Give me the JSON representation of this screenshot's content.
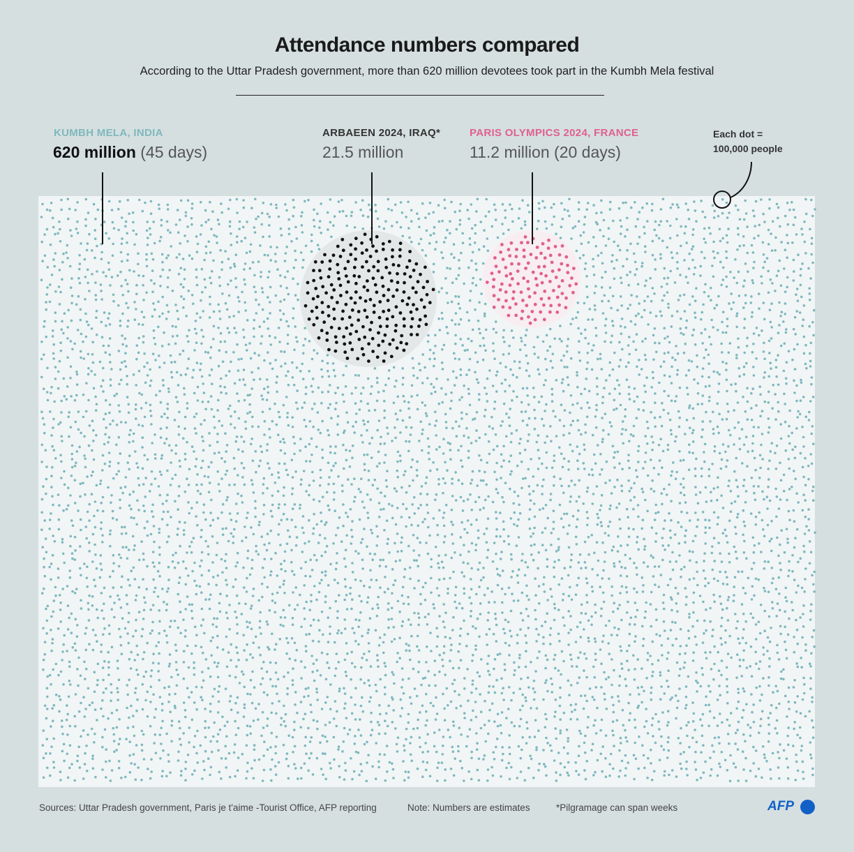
{
  "title": "Attendance numbers compared",
  "subtitle": "According to the Uttar Pradesh government, more than 620 million devotees took part in the Kumbh Mela festival",
  "legend_note": {
    "line1": "Each dot =",
    "line2": "100,000 people"
  },
  "footer": {
    "sources": "Sources: Uttar Pradesh government, Paris je t'aime -Tourist Office, AFP reporting",
    "note": "Note: Numbers are estimates",
    "footnote": "*Pilgramage can span weeks",
    "logo": "AFP"
  },
  "chart_data": {
    "type": "scatter",
    "title": "Attendance numbers compared",
    "unit": "million people",
    "people_per_dot": 100000,
    "series": [
      {
        "name": "KUMBH MELA, INDIA",
        "value_label": "620 million",
        "duration": "(45 days)",
        "value": 620,
        "color": "#7fb8bd"
      },
      {
        "name": "ARBAEEN 2024, IRAQ*",
        "value_label": "21.5 million",
        "duration": "",
        "value": 21.5,
        "color": "#111111"
      },
      {
        "name": "PARIS OLYMPICS 2024, FRANCE",
        "value_label": "11.2 million",
        "duration": "(20 days)",
        "value": 11.2,
        "color": "#e0608e"
      }
    ]
  }
}
